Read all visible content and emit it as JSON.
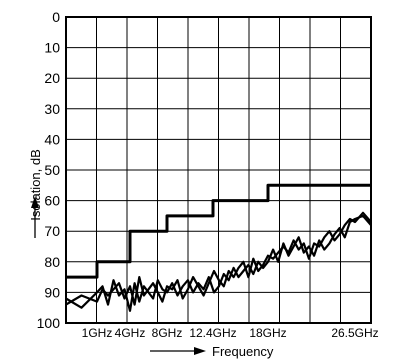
{
  "chart_data": {
    "type": "line",
    "title": "",
    "xlabel": "Frequency",
    "ylabel": "Isolation, dB",
    "x_tick_labels": [
      "1GHz",
      "4GHz",
      "8GHz",
      "12.4GHz",
      "18GHz",
      "26.5GHz"
    ],
    "x_tick_values_ghz": [
      1,
      4,
      8,
      12.4,
      18,
      26.5
    ],
    "y_tick_labels": [
      "0",
      "10",
      "20",
      "30",
      "40",
      "50",
      "60",
      "70",
      "80",
      "90",
      "100"
    ],
    "ylim": [
      0,
      100
    ],
    "y_inverted": true,
    "grid": true,
    "legend": "none",
    "line_color": "#000000",
    "series": [
      {
        "style": "step",
        "x": [
          0,
          1,
          4,
          8,
          12.4,
          18,
          26.5,
          27.5
        ],
        "y": [
          85,
          80,
          70,
          65,
          60,
          55,
          55,
          55
        ]
      },
      {
        "style": "noisy",
        "x": [
          0,
          0.5,
          1,
          1.5,
          2,
          2.5,
          3,
          3.5,
          4,
          4.5,
          5,
          5.5,
          6,
          6.5,
          7,
          7.5,
          8,
          8.5,
          9,
          9.5,
          10,
          10.5,
          11,
          11.5,
          12,
          12.5,
          13,
          13.5,
          14,
          14.5,
          15,
          15.5,
          16,
          16.5,
          17,
          17.5,
          18,
          18.5,
          19,
          19.5,
          20,
          20.5,
          21,
          21.5,
          22,
          22.5,
          23,
          23.5,
          24,
          24.5,
          25,
          25.5,
          26,
          26.5,
          27,
          27.5
        ],
        "y": [
          92,
          95,
          90,
          88,
          94,
          86,
          91,
          89,
          96,
          87,
          93,
          88,
          90,
          92,
          86,
          89,
          90,
          87,
          91,
          88,
          86,
          90,
          87,
          89,
          85,
          90,
          88,
          84,
          86,
          82,
          85,
          83,
          81,
          84,
          80,
          82,
          80,
          76,
          80,
          74,
          78,
          75,
          72,
          77,
          75,
          78,
          73,
          76,
          74,
          71,
          69,
          72,
          67,
          66,
          65,
          68
        ]
      },
      {
        "style": "noisy",
        "x": [
          0,
          0.5,
          1,
          1.5,
          2,
          2.5,
          3,
          3.5,
          4,
          4.5,
          5,
          5.5,
          6,
          6.5,
          7,
          7.5,
          8,
          8.5,
          9,
          9.5,
          10,
          10.5,
          11,
          11.5,
          12,
          12.5,
          13,
          13.5,
          14,
          14.5,
          15,
          15.5,
          16,
          16.5,
          17,
          17.5,
          18,
          18.5,
          19,
          19.5,
          20,
          20.5,
          21,
          21.5,
          22,
          22.5,
          23,
          23.5,
          24,
          24.5,
          25,
          25.5,
          26,
          26.5,
          27,
          27.5
        ],
        "y": [
          94,
          91,
          93,
          89,
          91,
          89,
          87,
          92,
          88,
          94,
          85,
          91,
          89,
          87,
          90,
          93,
          88,
          89,
          86,
          92,
          89,
          85,
          88,
          91,
          87,
          83,
          86,
          88,
          83,
          85,
          82,
          80,
          85,
          79,
          83,
          81,
          78,
          79,
          77,
          75,
          77,
          73,
          76,
          74,
          79,
          74,
          75,
          72,
          70,
          73,
          71,
          68,
          66,
          67,
          64,
          67
        ]
      }
    ]
  }
}
